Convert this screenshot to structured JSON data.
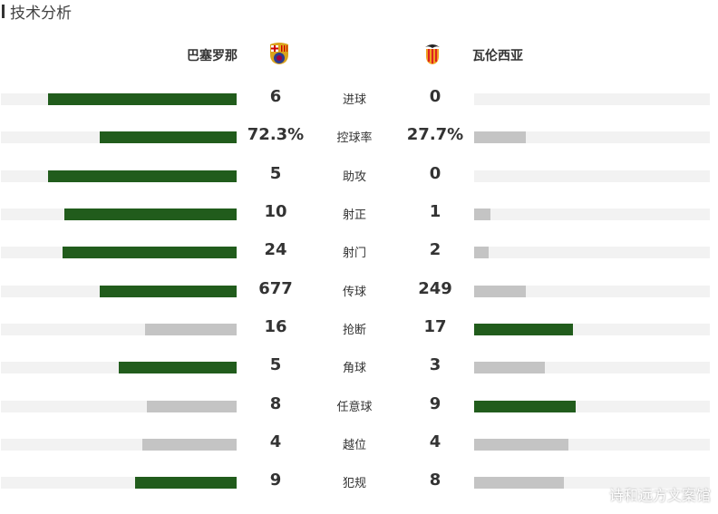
{
  "title": "技术分析",
  "home": {
    "name": "巴塞罗那",
    "crest": "barcelona-crest"
  },
  "away": {
    "name": "瓦伦西亚",
    "crest": "valencia-crest"
  },
  "colors": {
    "winner": "#215c1c",
    "loser": "#c4c4c4",
    "track": "#f2f2f2"
  },
  "stats": [
    {
      "label": "进球",
      "home": "6",
      "away": "0",
      "home_fill": 0.8,
      "away_fill": 0,
      "leader": "home"
    },
    {
      "label": "控球率",
      "home": "72.3%",
      "away": "27.7%",
      "home_fill": 0.58,
      "away_fill": 0.22,
      "leader": "home"
    },
    {
      "label": "助攻",
      "home": "5",
      "away": "0",
      "home_fill": 0.8,
      "away_fill": 0,
      "leader": "home"
    },
    {
      "label": "射正",
      "home": "10",
      "away": "1",
      "home_fill": 0.73,
      "away_fill": 0.07,
      "leader": "home"
    },
    {
      "label": "射门",
      "home": "24",
      "away": "2",
      "home_fill": 0.74,
      "away_fill": 0.06,
      "leader": "home"
    },
    {
      "label": "传球",
      "home": "677",
      "away": "249",
      "home_fill": 0.58,
      "away_fill": 0.22,
      "leader": "home"
    },
    {
      "label": "抢断",
      "home": "16",
      "away": "17",
      "home_fill": 0.39,
      "away_fill": 0.42,
      "leader": "away"
    },
    {
      "label": "角球",
      "home": "5",
      "away": "3",
      "home_fill": 0.5,
      "away_fill": 0.3,
      "leader": "home"
    },
    {
      "label": "任意球",
      "home": "8",
      "away": "9",
      "home_fill": 0.38,
      "away_fill": 0.43,
      "leader": "away"
    },
    {
      "label": "越位",
      "home": "4",
      "away": "4",
      "home_fill": 0.4,
      "away_fill": 0.4,
      "leader": "none"
    },
    {
      "label": "犯规",
      "home": "9",
      "away": "8",
      "home_fill": 0.43,
      "away_fill": 0.38,
      "leader": "home"
    }
  ],
  "watermark": "诗和远方文案馆"
}
